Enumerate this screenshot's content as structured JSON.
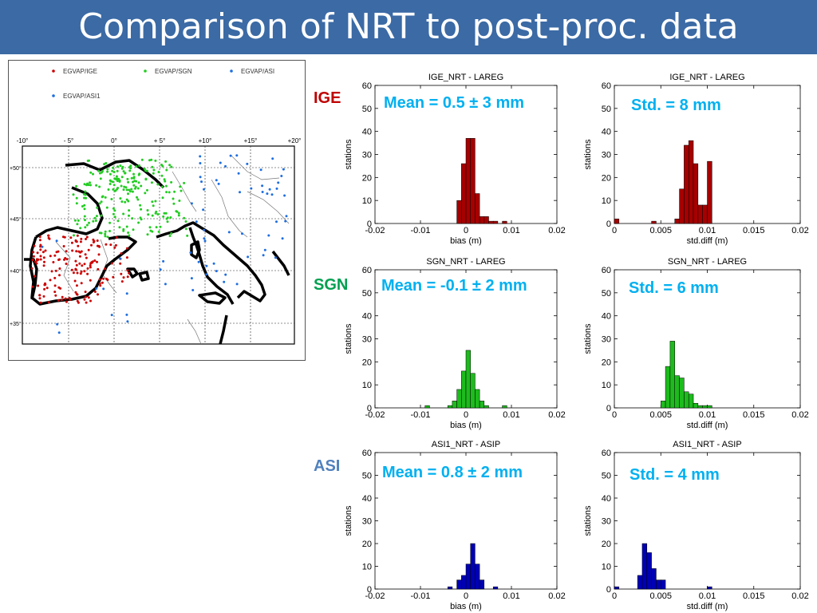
{
  "slide": {
    "title": "Comparison of NRT to post-proc. data",
    "colors": {
      "title_bar": "#3b6aa5",
      "title_text": "#ffffff",
      "annotation": "#00b0f0"
    }
  },
  "rows": [
    {
      "label": "IGE",
      "color": "#c00000",
      "bar_color": "#a60000"
    },
    {
      "label": "SGN",
      "color": "#00a050",
      "bar_color": "#1dbb1d"
    },
    {
      "label": "ASI",
      "color": "#4f81bd",
      "bar_color": "#0000b4"
    }
  ],
  "annotations": [
    "Mean = 0.5 ± 3 mm",
    "Std. = 8 mm",
    "Mean = -0.1 ± 2 mm",
    "Std. = 6 mm",
    "Mean = 0.8 ± 2 mm",
    "Std. = 4 mm"
  ],
  "map": {
    "legend": [
      {
        "label": "EGVAP/IGE",
        "color": "#cc0000"
      },
      {
        "label": "EGVAP/SGN",
        "color": "#22cc22"
      },
      {
        "label": "EGVAP/ASI",
        "color": "#1e6ee0"
      },
      {
        "label": "EGVAP/ASI1",
        "color": "#1e6ee0"
      }
    ],
    "lon_ticks": [
      "-10°",
      "- 5°",
      "0°",
      "+ 5°",
      "+10°",
      "+15°",
      "+20°"
    ],
    "lat_ticks": [
      "+50°",
      "+45°",
      "+40°",
      "+35°"
    ]
  },
  "chart_data": [
    {
      "type": "bar",
      "title": "IGE_NRT - LAREG",
      "xlabel": "bias (m)",
      "ylabel": "stations",
      "xlim": [
        -0.02,
        0.02
      ],
      "ylim": [
        0,
        60
      ],
      "x_ticks": [
        "-0.02",
        "-0.01",
        "0",
        "0.01",
        "0.02"
      ],
      "y_ticks": [
        "0",
        "10",
        "20",
        "30",
        "40",
        "50",
        "60"
      ],
      "bin_width": 0.001,
      "bins": [
        -0.0015,
        -0.0005,
        0.0005,
        0.0015,
        0.0025,
        0.0035,
        0.0045,
        0.0055,
        0.0065,
        0.0085
      ],
      "values": [
        10,
        26,
        37,
        37,
        13,
        3,
        3,
        1,
        1,
        1
      ]
    },
    {
      "type": "bar",
      "title": "IGE_NRT - LAREG",
      "xlabel": "std.diff (m)",
      "ylabel": "stations",
      "xlim": [
        0,
        0.02
      ],
      "ylim": [
        0,
        60
      ],
      "x_ticks": [
        "0",
        "0.005",
        "0.01",
        "0.015",
        "0.02"
      ],
      "y_ticks": [
        "0",
        "10",
        "20",
        "30",
        "40",
        "50",
        "60"
      ],
      "bin_width": 0.0005,
      "bins": [
        0.00025,
        0.00425,
        0.00675,
        0.00725,
        0.00775,
        0.00825,
        0.00875,
        0.00925,
        0.00975,
        0.01025
      ],
      "values": [
        2,
        1,
        2,
        15,
        34,
        36,
        26,
        8,
        8,
        27
      ]
    },
    {
      "type": "bar",
      "title": "SGN_NRT - LAREG",
      "xlabel": "bias (m)",
      "ylabel": "stations",
      "xlim": [
        -0.02,
        0.02
      ],
      "ylim": [
        0,
        60
      ],
      "x_ticks": [
        "-0.02",
        "-0.01",
        "0",
        "0.01",
        "0.02"
      ],
      "y_ticks": [
        "0",
        "10",
        "20",
        "30",
        "40",
        "50",
        "60"
      ],
      "bin_width": 0.001,
      "bins": [
        -0.0085,
        -0.0035,
        -0.0025,
        -0.0015,
        -0.0005,
        0.0005,
        0.0015,
        0.0025,
        0.0035,
        0.0045,
        0.0085
      ],
      "values": [
        1,
        1,
        3,
        8,
        16,
        25,
        15,
        8,
        3,
        1,
        1
      ]
    },
    {
      "type": "bar",
      "title": "SGN_NRT - LAREG",
      "xlabel": "std.diff (m)",
      "ylabel": "stations",
      "xlim": [
        0,
        0.02
      ],
      "ylim": [
        0,
        60
      ],
      "x_ticks": [
        "0",
        "0.005",
        "0.01",
        "0.015",
        "0.02"
      ],
      "y_ticks": [
        "0",
        "10",
        "20",
        "30",
        "40",
        "50",
        "60"
      ],
      "bin_width": 0.0005,
      "bins": [
        0.00525,
        0.00575,
        0.00625,
        0.00675,
        0.00725,
        0.00775,
        0.00825,
        0.00875,
        0.00925,
        0.00975,
        0.01025
      ],
      "values": [
        3,
        18,
        29,
        14,
        13,
        7,
        6,
        2,
        1,
        1,
        1
      ]
    },
    {
      "type": "bar",
      "title": "ASI1_NRT - ASIP",
      "xlabel": "bias (m)",
      "ylabel": "stations",
      "xlim": [
        -0.02,
        0.02
      ],
      "ylim": [
        0,
        60
      ],
      "x_ticks": [
        "-0.02",
        "-0.01",
        "0",
        "0.01",
        "0.02"
      ],
      "y_ticks": [
        "0",
        "10",
        "20",
        "30",
        "40",
        "50",
        "60"
      ],
      "bin_width": 0.001,
      "bins": [
        -0.0035,
        -0.0015,
        -0.0005,
        0.0005,
        0.0015,
        0.0025,
        0.0035,
        0.0065
      ],
      "values": [
        1,
        4,
        6,
        11,
        20,
        11,
        4,
        1
      ]
    },
    {
      "type": "bar",
      "title": "ASI1_NRT - ASIP",
      "xlabel": "std.diff (m)",
      "ylabel": "stations",
      "xlim": [
        0,
        0.02
      ],
      "ylim": [
        0,
        60
      ],
      "x_ticks": [
        "0",
        "0.005",
        "0.01",
        "0.015",
        "0.02"
      ],
      "y_ticks": [
        "0",
        "10",
        "20",
        "30",
        "40",
        "50",
        "60"
      ],
      "bin_width": 0.0005,
      "bins": [
        0.00025,
        0.00275,
        0.00325,
        0.00375,
        0.00425,
        0.00475,
        0.00525,
        0.01025
      ],
      "values": [
        1,
        6,
        20,
        16,
        9,
        4,
        4,
        1
      ]
    }
  ]
}
